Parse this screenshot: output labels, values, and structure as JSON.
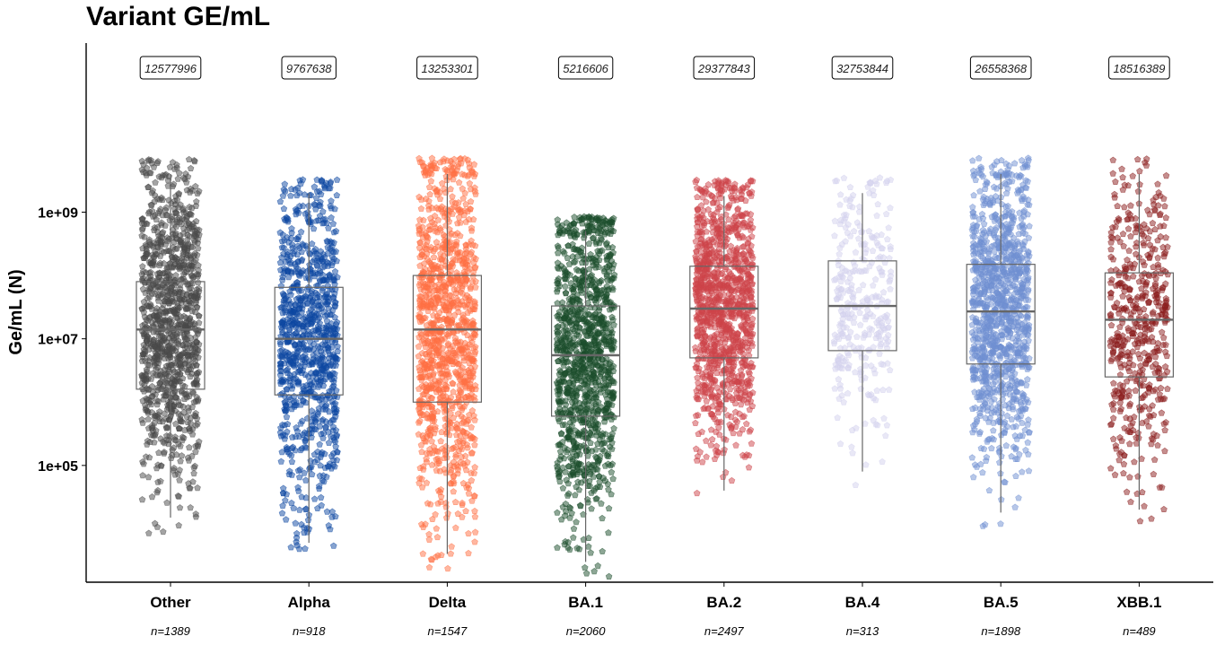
{
  "title": "Variant GE/mL",
  "chart_data": {
    "type": "box",
    "title": "Variant GE/mL",
    "xlabel": "",
    "ylabel": "Ge/mL (N)",
    "yscale": "log10",
    "ylim": [
      1000,
      500000000000
    ],
    "yticks": [
      {
        "value": 100000,
        "label": "1e+05"
      },
      {
        "value": 10000000,
        "label": "1e+07"
      },
      {
        "value": 1000000000,
        "label": "1e+09"
      }
    ],
    "grid": false,
    "jitter_points": true,
    "categories": [
      "Other",
      "Alpha",
      "Delta",
      "BA.1",
      "BA.2",
      "BA.4",
      "BA.5",
      "XBB.1"
    ],
    "counts": [
      "n=1389",
      "n=918",
      "n=1547",
      "n=2060",
      "n=2497",
      "n=313",
      "n=1898",
      "n=489"
    ],
    "mean_labels": [
      "12577996",
      "9767638",
      "13253301",
      "5216606",
      "29377843",
      "32753844",
      "26558368",
      "18516389"
    ],
    "colors": [
      "#4a4a4a",
      "#0d47a1",
      "#ff7043",
      "#1b4d2b",
      "#cd4449",
      "#d4d2ee",
      "#6f8fd2",
      "#8b1d1d"
    ],
    "boxes": [
      {
        "name": "Other",
        "min": 15000,
        "q1": 1600000,
        "median": 14000000,
        "q3": 80000000,
        "max": 4000000000
      },
      {
        "name": "Alpha",
        "min": 6000,
        "q1": 1300000,
        "median": 10000000,
        "q3": 65000000,
        "max": 2000000000
      },
      {
        "name": "Delta",
        "min": 4000,
        "q1": 1000000,
        "median": 14000000,
        "q3": 100000000,
        "max": 4000000000
      },
      {
        "name": "BA.1",
        "min": 3000,
        "q1": 600000,
        "median": 5500000,
        "q3": 33000000,
        "max": 500000000
      },
      {
        "name": "BA.2",
        "min": 40000,
        "q1": 5000000,
        "median": 30000000,
        "q3": 140000000,
        "max": 1800000000
      },
      {
        "name": "BA.4",
        "min": 80000,
        "q1": 6500000,
        "median": 33000000,
        "q3": 170000000,
        "max": 2000000000
      },
      {
        "name": "BA.5",
        "min": 18000,
        "q1": 4000000,
        "median": 27000000,
        "q3": 150000000,
        "max": 4000000000
      },
      {
        "name": "XBB.1",
        "min": 20000,
        "q1": 2500000,
        "median": 20000000,
        "q3": 110000000,
        "max": 4000000000
      }
    ]
  }
}
